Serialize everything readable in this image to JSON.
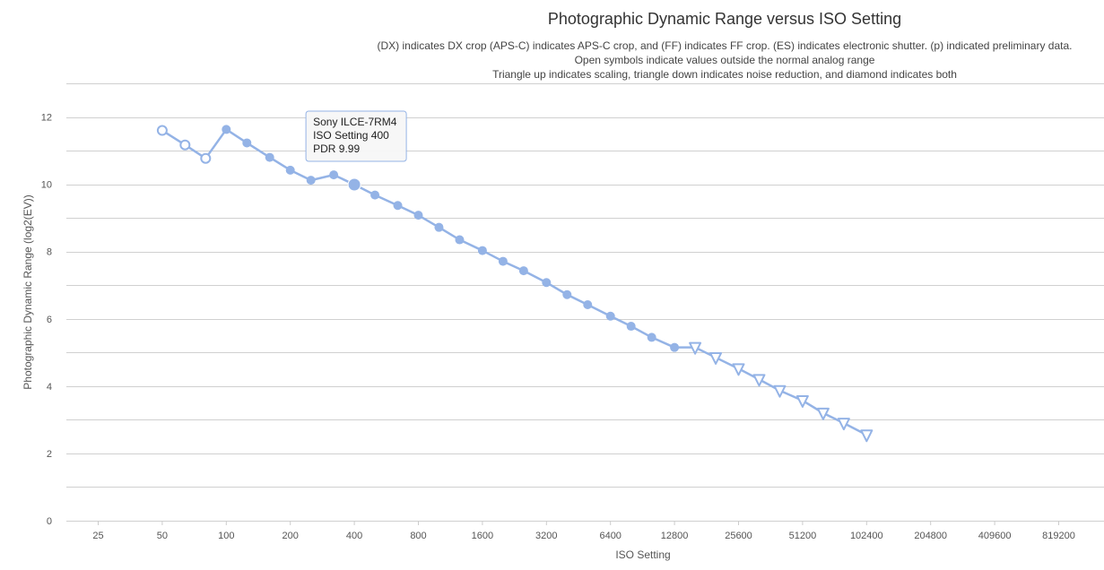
{
  "chart_data": {
    "type": "line",
    "title": "Photographic Dynamic Range versus ISO Setting",
    "subtitle_lines": [
      "(DX) indicates DX crop (APS-C) indicates APS-C crop, and (FF) indicates FF crop. (ES) indicates electronic shutter. (p) indicated preliminary data.",
      "Open symbols indicate values outside the normal analog range",
      "Triangle up indicates scaling, triangle down indicates noise reduction, and diamond indicates both"
    ],
    "xlabel": "ISO Setting",
    "ylabel": "Photographic Dynamic Range (log2(EV))",
    "x_scale": "log2",
    "x_ticks": [
      "25",
      "50",
      "100",
      "200",
      "400",
      "800",
      "1600",
      "3200",
      "6400",
      "12800",
      "25600",
      "51200",
      "102400",
      "204800",
      "409600",
      "819200"
    ],
    "y_ticks": [
      0,
      2,
      4,
      6,
      8,
      10,
      12
    ],
    "ylim": [
      0,
      13
    ],
    "grid": true,
    "color": "#94b3e6",
    "series": [
      {
        "name": "Sony ILCE-7RM4",
        "points": [
          {
            "x": 50,
            "y": 11.6,
            "marker": "open-circle"
          },
          {
            "x": 64,
            "y": 11.17,
            "marker": "open-circle"
          },
          {
            "x": 80,
            "y": 10.77,
            "marker": "open-circle"
          },
          {
            "x": 100,
            "y": 11.63,
            "marker": "circle"
          },
          {
            "x": 125,
            "y": 11.23,
            "marker": "circle"
          },
          {
            "x": 160,
            "y": 10.8,
            "marker": "circle"
          },
          {
            "x": 200,
            "y": 10.42,
            "marker": "circle"
          },
          {
            "x": 250,
            "y": 10.12,
            "marker": "circle"
          },
          {
            "x": 320,
            "y": 10.28,
            "marker": "circle"
          },
          {
            "x": 400,
            "y": 9.99,
            "marker": "circle"
          },
          {
            "x": 500,
            "y": 9.68,
            "marker": "circle"
          },
          {
            "x": 640,
            "y": 9.37,
            "marker": "circle"
          },
          {
            "x": 800,
            "y": 9.08,
            "marker": "circle"
          },
          {
            "x": 1000,
            "y": 8.72,
            "marker": "circle"
          },
          {
            "x": 1250,
            "y": 8.35,
            "marker": "circle"
          },
          {
            "x": 1600,
            "y": 8.03,
            "marker": "circle"
          },
          {
            "x": 2000,
            "y": 7.71,
            "marker": "circle"
          },
          {
            "x": 2500,
            "y": 7.43,
            "marker": "circle"
          },
          {
            "x": 3200,
            "y": 7.08,
            "marker": "circle"
          },
          {
            "x": 4000,
            "y": 6.72,
            "marker": "circle"
          },
          {
            "x": 5000,
            "y": 6.42,
            "marker": "circle"
          },
          {
            "x": 6400,
            "y": 6.08,
            "marker": "circle"
          },
          {
            "x": 8000,
            "y": 5.78,
            "marker": "circle"
          },
          {
            "x": 10000,
            "y": 5.45,
            "marker": "circle"
          },
          {
            "x": 12800,
            "y": 5.15,
            "marker": "circle"
          },
          {
            "x": 16000,
            "y": 5.15,
            "marker": "triangle-down"
          },
          {
            "x": 20000,
            "y": 4.85,
            "marker": "triangle-down"
          },
          {
            "x": 25600,
            "y": 4.52,
            "marker": "triangle-down"
          },
          {
            "x": 32000,
            "y": 4.2,
            "marker": "triangle-down"
          },
          {
            "x": 40000,
            "y": 3.87,
            "marker": "triangle-down"
          },
          {
            "x": 51200,
            "y": 3.57,
            "marker": "triangle-down"
          },
          {
            "x": 64000,
            "y": 3.2,
            "marker": "triangle-down"
          },
          {
            "x": 80000,
            "y": 2.9,
            "marker": "triangle-down"
          },
          {
            "x": 102400,
            "y": 2.55,
            "marker": "triangle-down"
          }
        ]
      }
    ],
    "tooltip": {
      "lines": [
        "Sony ILCE-7RM4",
        "ISO Setting 400",
        "PDR 9.99"
      ],
      "x": 400,
      "y": 9.99
    }
  }
}
